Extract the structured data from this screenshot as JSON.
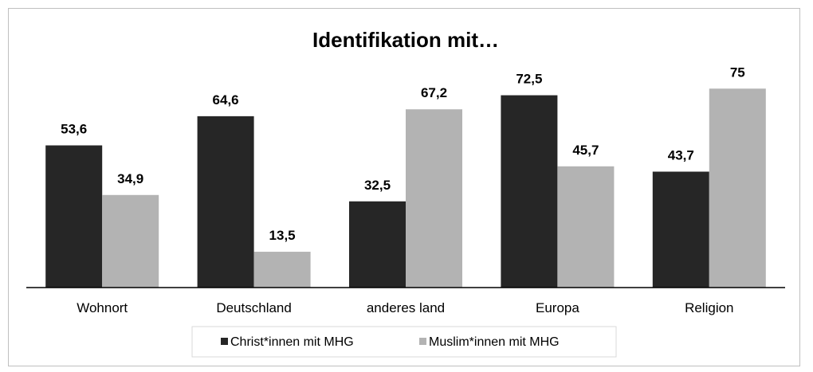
{
  "chart_data": {
    "type": "bar",
    "title": "Identifikation mit…",
    "xlabel": "",
    "ylabel": "",
    "categories": [
      "Wohnort",
      "Deutschland",
      "anderes land",
      "Europa",
      "Religion"
    ],
    "series": [
      {
        "name": "Christ*innen mit MHG",
        "color": "#262626",
        "values": [
          53.6,
          64.6,
          32.5,
          72.5,
          43.7
        ],
        "labels": [
          "53,6",
          "64,6",
          "32,5",
          "72,5",
          "43,7"
        ]
      },
      {
        "name": "Muslim*innen mit MHG",
        "color": "#b3b3b3",
        "values": [
          34.9,
          13.5,
          67.2,
          45.7,
          75
        ],
        "labels": [
          "34,9",
          "13,5",
          "67,2",
          "45,7",
          "75"
        ]
      }
    ],
    "ylim": [
      0,
      80
    ],
    "grid": false,
    "legend_position": "bottom"
  }
}
